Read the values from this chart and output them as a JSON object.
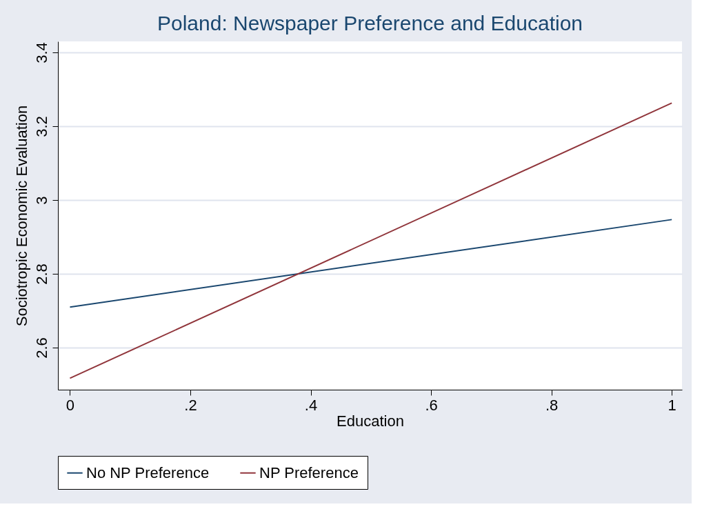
{
  "chart_data": {
    "type": "line",
    "title": "Poland: Newspaper Preference and Education",
    "xlabel": "Education",
    "ylabel": "Sociotropic Economic Evaluation",
    "x": [
      0,
      1
    ],
    "series": [
      {
        "name": "No NP Preference",
        "color": "#1a476f",
        "values": [
          2.71,
          2.947
        ]
      },
      {
        "name": "NP Preference",
        "color": "#90353b",
        "values": [
          2.517,
          3.263
        ]
      }
    ],
    "xlim": [
      -0.02,
      1.017
    ],
    "ylim": [
      2.486,
      3.43
    ],
    "xticks": [
      0,
      {
        "value": 0.2,
        "label": ".2"
      },
      {
        "value": 0.4,
        "label": ".4"
      },
      {
        "value": 0.6,
        "label": ".6"
      },
      {
        "value": 0.8,
        "label": ".8"
      },
      1
    ],
    "yticks": [
      2.6,
      2.8,
      3,
      3.2,
      3.4
    ],
    "grid": "y",
    "legend": "bottom",
    "marker": "none",
    "line_style": "solid"
  }
}
